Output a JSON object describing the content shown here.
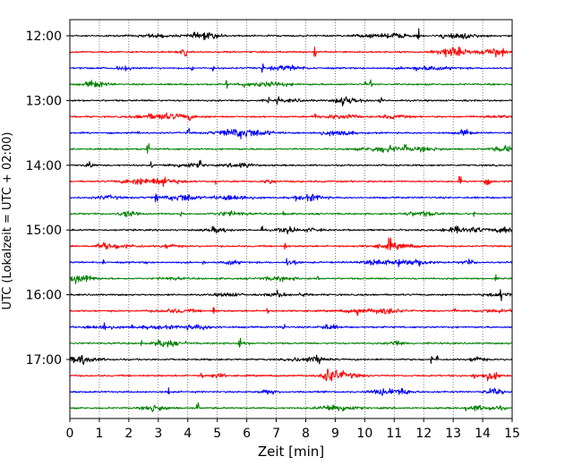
{
  "chart_data": {
    "type": "line",
    "xlabel": "Zeit  [min]",
    "ylabel": "UTC (Lokalzeit = UTC + 02:00)",
    "xlim": [
      0,
      15
    ],
    "x_ticks": [
      0,
      1,
      2,
      3,
      4,
      5,
      6,
      7,
      8,
      9,
      10,
      11,
      12,
      13,
      14,
      15
    ],
    "y_tick_labels": [
      "12:00",
      "13:00",
      "14:00",
      "15:00",
      "16:00",
      "17:00"
    ],
    "grid": "vertical dotted lines at each minute",
    "colors": [
      "#000000",
      "#ff0000",
      "#0000ff",
      "#008000"
    ],
    "traces": [
      {
        "start": "12:00",
        "color": "#000000"
      },
      {
        "start": "12:15",
        "color": "#ff0000"
      },
      {
        "start": "12:30",
        "color": "#0000ff"
      },
      {
        "start": "12:45",
        "color": "#008000"
      },
      {
        "start": "13:00",
        "color": "#000000"
      },
      {
        "start": "13:15",
        "color": "#ff0000"
      },
      {
        "start": "13:30",
        "color": "#0000ff"
      },
      {
        "start": "13:45",
        "color": "#008000"
      },
      {
        "start": "14:00",
        "color": "#000000"
      },
      {
        "start": "14:15",
        "color": "#ff0000"
      },
      {
        "start": "14:30",
        "color": "#0000ff"
      },
      {
        "start": "14:45",
        "color": "#008000"
      },
      {
        "start": "15:00",
        "color": "#000000"
      },
      {
        "start": "15:15",
        "color": "#ff0000"
      },
      {
        "start": "15:30",
        "color": "#0000ff"
      },
      {
        "start": "15:45",
        "color": "#008000"
      },
      {
        "start": "16:00",
        "color": "#000000"
      },
      {
        "start": "16:15",
        "color": "#ff0000"
      },
      {
        "start": "16:30",
        "color": "#0000ff"
      },
      {
        "start": "16:45",
        "color": "#008000"
      },
      {
        "start": "17:00",
        "color": "#000000"
      },
      {
        "start": "17:15",
        "color": "#ff0000",
        "event_minute": 8.7
      },
      {
        "start": "17:30",
        "color": "#0000ff"
      },
      {
        "start": "17:45",
        "color": "#008000"
      }
    ]
  }
}
